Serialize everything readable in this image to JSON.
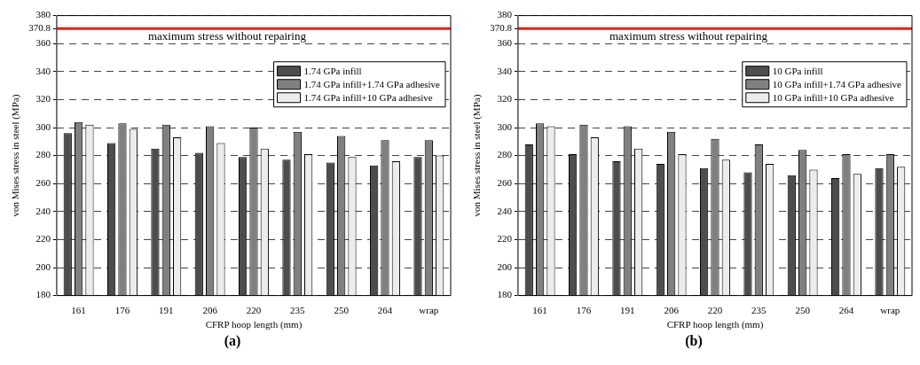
{
  "chart_data": [
    {
      "type": "bar",
      "categories": [
        "161",
        "176",
        "191",
        "206",
        "220",
        "235",
        "250",
        "264",
        "wrap"
      ],
      "xlabel": "CFRP hoop length (mm)",
      "ylabel": "von Mises stress in steel (MPa)",
      "ylim": [
        180,
        380
      ],
      "yticks": [
        180,
        200,
        220,
        240,
        260,
        280,
        300,
        320,
        340,
        360,
        370.8,
        380
      ],
      "grid": "y",
      "legend": "top right",
      "ref_lines": [
        {
          "axis": "y",
          "value": 370.8,
          "label": "maximum stress without repairing",
          "color": "#e2221a"
        }
      ],
      "annotations": [
        "(a)"
      ],
      "series": [
        {
          "name": "1.74 GPa infill",
          "color": "#4d4d4d",
          "values": [
            296,
            289,
            285,
            282,
            279,
            277,
            275,
            273,
            279
          ]
        },
        {
          "name": "1.74 GPa infill+1.74 GPa adhesive",
          "color": "#808080",
          "values": [
            304,
            303,
            302,
            301,
            300,
            297,
            294,
            291,
            291
          ]
        },
        {
          "name": "1.74 GPa infill+10 GPa adhesive",
          "color": "#ececec",
          "values": [
            302,
            299,
            293,
            289,
            285,
            281,
            279,
            276,
            280
          ]
        }
      ]
    },
    {
      "type": "bar",
      "categories": [
        "161",
        "176",
        "191",
        "206",
        "220",
        "235",
        "250",
        "264",
        "wrap"
      ],
      "xlabel": "CFRP hoop length (mm)",
      "ylabel": "von Mises stress in steel (MPa)",
      "ylim": [
        180,
        380
      ],
      "yticks": [
        180,
        200,
        220,
        240,
        260,
        280,
        300,
        320,
        340,
        360,
        370.8,
        380
      ],
      "grid": "y",
      "legend": "top right",
      "ref_lines": [
        {
          "axis": "y",
          "value": 370.8,
          "label": "maximum stress without repairing",
          "color": "#e2221a"
        }
      ],
      "annotations": [
        "(b)"
      ],
      "series": [
        {
          "name": "10 GPa infill",
          "color": "#4d4d4d",
          "values": [
            288,
            281,
            276,
            274,
            271,
            268,
            266,
            264,
            271
          ]
        },
        {
          "name": "10 GPa infill+1.74 GPa adhesive",
          "color": "#808080",
          "values": [
            303,
            302,
            301,
            297,
            292,
            288,
            284,
            281,
            281
          ]
        },
        {
          "name": "10 GPa infill+10 GPa adhesive",
          "color": "#ececec",
          "values": [
            301,
            293,
            285,
            281,
            277,
            274,
            270,
            267,
            272
          ]
        }
      ]
    }
  ]
}
